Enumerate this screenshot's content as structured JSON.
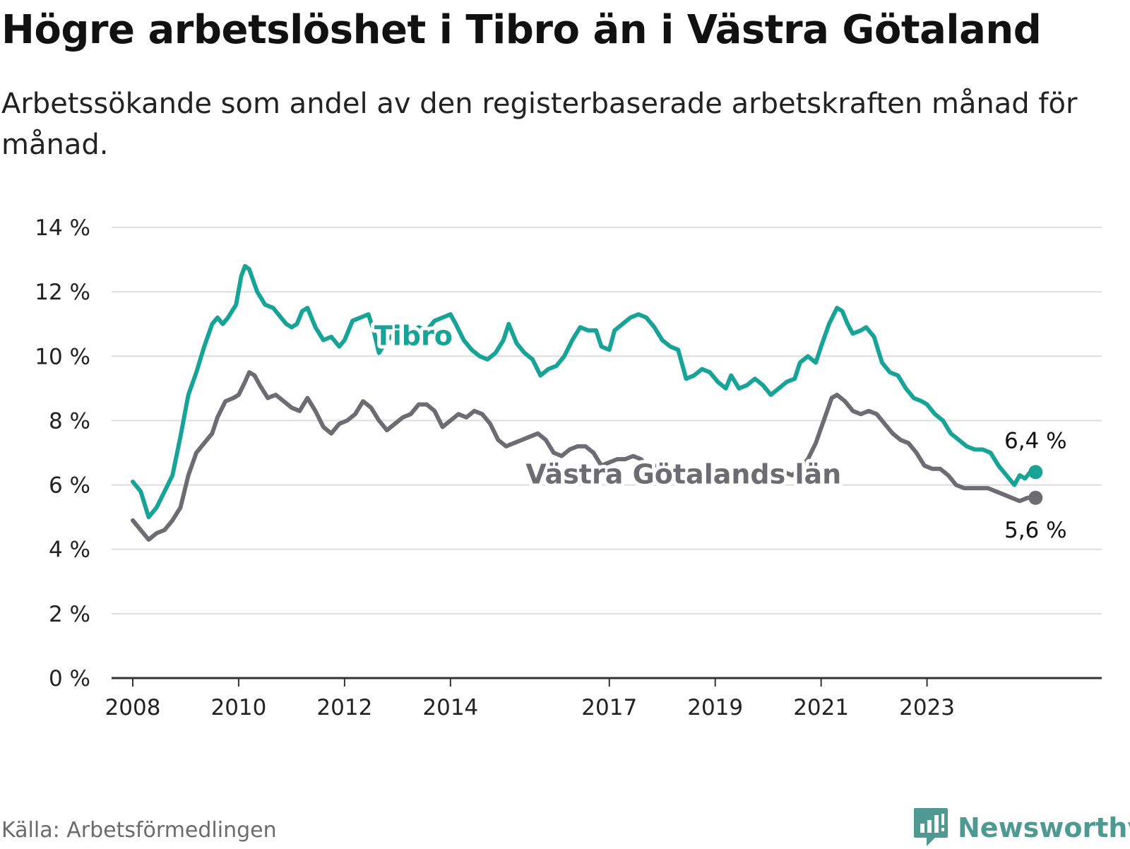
{
  "title": "Högre arbetslöshet i Tibro än i Västra Götaland",
  "subtitle": "Arbetssökande som andel av den registerbaserade arbetskraften månad för månad.",
  "source": "Källa: Arbetsförmedlingen",
  "brand": {
    "name": "Newsworthy",
    "icon": "newsworthy-logo-icon",
    "color": "#4e9a93"
  },
  "colors": {
    "tibro": "#17a398",
    "vg": "#6d6c73",
    "grid": "#dddddd",
    "axis": "#333333",
    "text": "#222222"
  },
  "chart_data": {
    "type": "line",
    "title": "Högre arbetslöshet i Tibro än i Västra Götaland",
    "ylabel": "",
    "xlabel": "",
    "ylim": [
      0,
      14
    ],
    "yticks": [
      0,
      2,
      4,
      6,
      8,
      10,
      12,
      14
    ],
    "ytick_labels": [
      "0 %",
      "2 %",
      "4 %",
      "6 %",
      "8 %",
      "10 %",
      "12 %",
      "14 %"
    ],
    "xlim": [
      2007.6,
      2026.3
    ],
    "xticks": [
      2008,
      2010,
      2012,
      2014,
      2017,
      2019,
      2021,
      2023
    ],
    "xtick_labels": [
      "2008",
      "2010",
      "2012",
      "2014",
      "2017",
      "2019",
      "2021",
      "2023"
    ],
    "grid": true,
    "series": [
      {
        "name": "Tibro",
        "label": "Tibro",
        "color": "#17a398",
        "end_label": "6,4 %",
        "points": [
          [
            2008.0,
            6.1
          ],
          [
            2008.15,
            5.8
          ],
          [
            2008.3,
            5.0
          ],
          [
            2008.45,
            5.3
          ],
          [
            2008.6,
            5.8
          ],
          [
            2008.75,
            6.3
          ],
          [
            2008.9,
            7.5
          ],
          [
            2009.05,
            8.8
          ],
          [
            2009.2,
            9.5
          ],
          [
            2009.35,
            10.3
          ],
          [
            2009.5,
            11.0
          ],
          [
            2009.6,
            11.2
          ],
          [
            2009.7,
            11.0
          ],
          [
            2009.8,
            11.2
          ],
          [
            2009.95,
            11.6
          ],
          [
            2010.05,
            12.5
          ],
          [
            2010.12,
            12.8
          ],
          [
            2010.2,
            12.7
          ],
          [
            2010.35,
            12.0
          ],
          [
            2010.5,
            11.6
          ],
          [
            2010.65,
            11.5
          ],
          [
            2010.8,
            11.2
          ],
          [
            2010.9,
            11.0
          ],
          [
            2011.0,
            10.9
          ],
          [
            2011.1,
            11.0
          ],
          [
            2011.2,
            11.4
          ],
          [
            2011.3,
            11.5
          ],
          [
            2011.45,
            10.9
          ],
          [
            2011.6,
            10.5
          ],
          [
            2011.75,
            10.6
          ],
          [
            2011.9,
            10.3
          ],
          [
            2012.0,
            10.5
          ],
          [
            2012.15,
            11.1
          ],
          [
            2012.3,
            11.2
          ],
          [
            2012.45,
            11.3
          ],
          [
            2012.55,
            10.8
          ],
          [
            2012.65,
            10.1
          ],
          [
            2012.8,
            10.5
          ],
          [
            2012.95,
            10.7
          ],
          [
            2013.1,
            10.8
          ],
          [
            2013.25,
            10.7
          ],
          [
            2013.4,
            10.9
          ],
          [
            2013.55,
            10.8
          ],
          [
            2013.7,
            11.1
          ],
          [
            2013.85,
            11.2
          ],
          [
            2014.0,
            11.3
          ],
          [
            2014.1,
            11.0
          ],
          [
            2014.25,
            10.5
          ],
          [
            2014.4,
            10.2
          ],
          [
            2014.55,
            10.0
          ],
          [
            2014.7,
            9.9
          ],
          [
            2014.85,
            10.1
          ],
          [
            2015.0,
            10.5
          ],
          [
            2015.1,
            11.0
          ],
          [
            2015.25,
            10.4
          ],
          [
            2015.4,
            10.1
          ],
          [
            2015.55,
            9.9
          ],
          [
            2015.7,
            9.4
          ],
          [
            2015.85,
            9.6
          ],
          [
            2016.0,
            9.7
          ],
          [
            2016.15,
            10.0
          ],
          [
            2016.3,
            10.5
          ],
          [
            2016.45,
            10.9
          ],
          [
            2016.6,
            10.8
          ],
          [
            2016.75,
            10.8
          ],
          [
            2016.85,
            10.3
          ],
          [
            2017.0,
            10.2
          ],
          [
            2017.1,
            10.8
          ],
          [
            2017.25,
            11.0
          ],
          [
            2017.4,
            11.2
          ],
          [
            2017.55,
            11.3
          ],
          [
            2017.7,
            11.2
          ],
          [
            2017.85,
            10.9
          ],
          [
            2018.0,
            10.5
          ],
          [
            2018.15,
            10.3
          ],
          [
            2018.3,
            10.2
          ],
          [
            2018.45,
            9.3
          ],
          [
            2018.6,
            9.4
          ],
          [
            2018.75,
            9.6
          ],
          [
            2018.9,
            9.5
          ],
          [
            2019.05,
            9.2
          ],
          [
            2019.2,
            9.0
          ],
          [
            2019.3,
            9.4
          ],
          [
            2019.45,
            9.0
          ],
          [
            2019.6,
            9.1
          ],
          [
            2019.75,
            9.3
          ],
          [
            2019.9,
            9.1
          ],
          [
            2020.05,
            8.8
          ],
          [
            2020.2,
            9.0
          ],
          [
            2020.35,
            9.2
          ],
          [
            2020.5,
            9.3
          ],
          [
            2020.6,
            9.8
          ],
          [
            2020.75,
            10.0
          ],
          [
            2020.9,
            9.8
          ],
          [
            2021.0,
            10.3
          ],
          [
            2021.15,
            11.0
          ],
          [
            2021.3,
            11.5
          ],
          [
            2021.4,
            11.4
          ],
          [
            2021.5,
            11.0
          ],
          [
            2021.6,
            10.7
          ],
          [
            2021.75,
            10.8
          ],
          [
            2021.85,
            10.9
          ],
          [
            2022.0,
            10.6
          ],
          [
            2022.15,
            9.8
          ],
          [
            2022.3,
            9.5
          ],
          [
            2022.45,
            9.4
          ],
          [
            2022.6,
            9.0
          ],
          [
            2022.75,
            8.7
          ],
          [
            2022.9,
            8.6
          ],
          [
            2023.0,
            8.5
          ],
          [
            2023.15,
            8.2
          ],
          [
            2023.3,
            8.0
          ],
          [
            2023.45,
            7.6
          ],
          [
            2023.6,
            7.4
          ],
          [
            2023.75,
            7.2
          ],
          [
            2023.9,
            7.1
          ],
          [
            2024.05,
            7.1
          ],
          [
            2024.2,
            7.0
          ],
          [
            2024.35,
            6.6
          ],
          [
            2024.5,
            6.3
          ],
          [
            2024.65,
            6.0
          ],
          [
            2024.75,
            6.3
          ],
          [
            2024.85,
            6.2
          ],
          [
            2024.95,
            6.4
          ],
          [
            2025.05,
            6.4
          ]
        ]
      },
      {
        "name": "Västra Götalands län",
        "label": "Västra Götalands län",
        "color": "#6d6c73",
        "end_label": "5,6 %",
        "points": [
          [
            2008.0,
            4.9
          ],
          [
            2008.15,
            4.6
          ],
          [
            2008.3,
            4.3
          ],
          [
            2008.45,
            4.5
          ],
          [
            2008.6,
            4.6
          ],
          [
            2008.75,
            4.9
          ],
          [
            2008.9,
            5.3
          ],
          [
            2009.05,
            6.3
          ],
          [
            2009.2,
            7.0
          ],
          [
            2009.35,
            7.3
          ],
          [
            2009.5,
            7.6
          ],
          [
            2009.6,
            8.1
          ],
          [
            2009.75,
            8.6
          ],
          [
            2009.9,
            8.7
          ],
          [
            2010.0,
            8.8
          ],
          [
            2010.12,
            9.2
          ],
          [
            2010.2,
            9.5
          ],
          [
            2010.3,
            9.4
          ],
          [
            2010.4,
            9.1
          ],
          [
            2010.55,
            8.7
          ],
          [
            2010.7,
            8.8
          ],
          [
            2010.85,
            8.6
          ],
          [
            2011.0,
            8.4
          ],
          [
            2011.15,
            8.3
          ],
          [
            2011.3,
            8.7
          ],
          [
            2011.45,
            8.3
          ],
          [
            2011.6,
            7.8
          ],
          [
            2011.75,
            7.6
          ],
          [
            2011.9,
            7.9
          ],
          [
            2012.05,
            8.0
          ],
          [
            2012.2,
            8.2
          ],
          [
            2012.35,
            8.6
          ],
          [
            2012.5,
            8.4
          ],
          [
            2012.65,
            8.0
          ],
          [
            2012.8,
            7.7
          ],
          [
            2012.95,
            7.9
          ],
          [
            2013.1,
            8.1
          ],
          [
            2013.25,
            8.2
          ],
          [
            2013.4,
            8.5
          ],
          [
            2013.55,
            8.5
          ],
          [
            2013.7,
            8.3
          ],
          [
            2013.85,
            7.8
          ],
          [
            2014.0,
            8.0
          ],
          [
            2014.15,
            8.2
          ],
          [
            2014.3,
            8.1
          ],
          [
            2014.45,
            8.3
          ],
          [
            2014.6,
            8.2
          ],
          [
            2014.75,
            7.9
          ],
          [
            2014.9,
            7.4
          ],
          [
            2015.05,
            7.2
          ],
          [
            2015.2,
            7.3
          ],
          [
            2015.35,
            7.4
          ],
          [
            2015.5,
            7.5
          ],
          [
            2015.65,
            7.6
          ],
          [
            2015.8,
            7.4
          ],
          [
            2015.95,
            7.0
          ],
          [
            2016.1,
            6.9
          ],
          [
            2016.25,
            7.1
          ],
          [
            2016.4,
            7.2
          ],
          [
            2016.55,
            7.2
          ],
          [
            2016.7,
            7.0
          ],
          [
            2016.85,
            6.6
          ],
          [
            2017.0,
            6.7
          ],
          [
            2017.15,
            6.8
          ],
          [
            2017.3,
            6.8
          ],
          [
            2017.45,
            6.9
          ],
          [
            2017.6,
            6.8
          ],
          [
            2017.75,
            6.5
          ],
          [
            2017.9,
            6.6
          ],
          [
            2018.05,
            6.4
          ],
          [
            2018.2,
            6.3
          ],
          [
            2018.35,
            6.2
          ],
          [
            2018.5,
            6.3
          ],
          [
            2018.65,
            6.3
          ],
          [
            2018.8,
            6.2
          ],
          [
            2018.95,
            6.2
          ],
          [
            2019.1,
            6.3
          ],
          [
            2019.25,
            6.2
          ],
          [
            2019.4,
            6.3
          ],
          [
            2019.55,
            6.2
          ],
          [
            2019.7,
            6.2
          ],
          [
            2019.85,
            6.3
          ],
          [
            2020.0,
            6.3
          ],
          [
            2020.15,
            6.3
          ],
          [
            2020.3,
            6.4
          ],
          [
            2020.45,
            6.3
          ],
          [
            2020.6,
            6.5
          ],
          [
            2020.75,
            6.8
          ],
          [
            2020.9,
            7.3
          ],
          [
            2021.05,
            8.0
          ],
          [
            2021.2,
            8.7
          ],
          [
            2021.3,
            8.8
          ],
          [
            2021.45,
            8.6
          ],
          [
            2021.6,
            8.3
          ],
          [
            2021.75,
            8.2
          ],
          [
            2021.9,
            8.3
          ],
          [
            2022.05,
            8.2
          ],
          [
            2022.2,
            7.9
          ],
          [
            2022.35,
            7.6
          ],
          [
            2022.5,
            7.4
          ],
          [
            2022.65,
            7.3
          ],
          [
            2022.8,
            7.0
          ],
          [
            2022.95,
            6.6
          ],
          [
            2023.1,
            6.5
          ],
          [
            2023.25,
            6.5
          ],
          [
            2023.4,
            6.3
          ],
          [
            2023.55,
            6.0
          ],
          [
            2023.7,
            5.9
          ],
          [
            2023.85,
            5.9
          ],
          [
            2024.0,
            5.9
          ],
          [
            2024.15,
            5.9
          ],
          [
            2024.3,
            5.8
          ],
          [
            2024.45,
            5.7
          ],
          [
            2024.6,
            5.6
          ],
          [
            2024.75,
            5.5
          ],
          [
            2024.9,
            5.6
          ],
          [
            2025.05,
            5.6
          ]
        ]
      }
    ]
  }
}
